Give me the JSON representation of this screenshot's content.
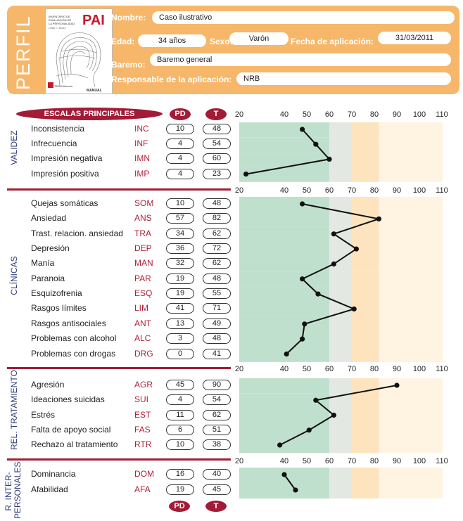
{
  "header": {
    "title": "PERFIL",
    "cover": {
      "logo": "PAI",
      "subtitle_lines": [
        "INVENTARIO DE",
        "EVALUACIÓN DE",
        "LA PERSONALIDAD"
      ],
      "author": "Leslie C. Morey",
      "publisher": "TEA Ediciones",
      "manual": "MANUAL"
    },
    "fields": {
      "nombre_label": "Nombre:",
      "nombre": "Caso ilustrativo",
      "edad_label": "Edad:",
      "edad": "34 años",
      "sexo_label": "Sexo:",
      "sexo": "Varón",
      "fecha_label": "Fecha de aplicación:",
      "fecha": "31/03/2011",
      "baremo_label": "Baremo:",
      "baremo": "Baremo general",
      "responsable_label": "Responsable de la aplicación:",
      "responsable": "NRB"
    }
  },
  "table": {
    "header_title": "ESCALAS PRINCIPALES",
    "pd_label": "PD",
    "t_label": "T",
    "sections": [
      {
        "label": "VALIDEZ"
      },
      {
        "label": "CLÍNICAS"
      },
      {
        "label": "REL. TRATAMIENTO"
      },
      {
        "label": "R. INTER-PERSONALES"
      }
    ]
  },
  "colors": {
    "header_bg": "#f6b76a",
    "accent_red": "#a31c37",
    "green_zone": "#bfe0cd",
    "light_grey_zone": "#e4e8e2",
    "peach_zone": "#fde4be",
    "pale_zone": "#fff3e2",
    "section_blue": "#2f3f7a"
  },
  "chart_data": {
    "type": "line",
    "x_axis_ticks": [
      20,
      40,
      50,
      60,
      70,
      80,
      90,
      100,
      110
    ],
    "xlim": [
      20,
      110
    ],
    "groups": [
      {
        "section": "VALIDEZ",
        "scales": [
          {
            "name": "Inconsistencia",
            "abbr": "INC",
            "pd": "10",
            "t": 48
          },
          {
            "name": "Infrecuencia",
            "abbr": "INF",
            "pd": "4",
            "t": 54
          },
          {
            "name": "Impresión negativa",
            "abbr": "IMN",
            "pd": "4",
            "t": 60
          },
          {
            "name": "Impresión positiva",
            "abbr": "IMP",
            "pd": "4",
            "t": 23
          }
        ]
      },
      {
        "section": "CLÍNICAS",
        "scales": [
          {
            "name": "Quejas somáticas",
            "abbr": "SOM",
            "pd": "10",
            "t": 48
          },
          {
            "name": "Ansiedad",
            "abbr": "ANS",
            "pd": "57",
            "t": 82
          },
          {
            "name": "Trast. relacion. ansiedad",
            "abbr": "TRA",
            "pd": "34",
            "t": 62
          },
          {
            "name": "Depresión",
            "abbr": "DEP",
            "pd": "36",
            "t": 72
          },
          {
            "name": "Manía",
            "abbr": "MAN",
            "pd": "32",
            "t": 62
          },
          {
            "name": "Paranoia",
            "abbr": "PAR",
            "pd": "19",
            "t": 48
          },
          {
            "name": "Esquizofrenia",
            "abbr": "ESQ",
            "pd": "19",
            "t": 55
          },
          {
            "name": "Rasgos límites",
            "abbr": "LIM",
            "pd": "41",
            "t": 71
          },
          {
            "name": "Rasgos antisociales",
            "abbr": "ANT",
            "pd": "13",
            "t": 49
          },
          {
            "name": "Problemas con alcohol",
            "abbr": "ALC",
            "pd": "3",
            "t": 48
          },
          {
            "name": "Problemas con drogas",
            "abbr": "DRG",
            "pd": "0",
            "t": 41
          }
        ]
      },
      {
        "section": "REL. TRATAMIENTO",
        "scales": [
          {
            "name": "Agresión",
            "abbr": "AGR",
            "pd": "45",
            "t": 90
          },
          {
            "name": "Ideaciones suicidas",
            "abbr": "SUI",
            "pd": "4",
            "t": 54
          },
          {
            "name": "Estrés",
            "abbr": "EST",
            "pd": "11",
            "t": 62
          },
          {
            "name": "Falta de apoyo social",
            "abbr": "FAS",
            "pd": "6",
            "t": 51
          },
          {
            "name": "Rechazo al tratamiento",
            "abbr": "RTR",
            "pd": "10",
            "t": 38
          }
        ]
      },
      {
        "section": "R. INTER-PERSONALES",
        "scales": [
          {
            "name": "Dominancia",
            "abbr": "DOM",
            "pd": "16",
            "t": 40
          },
          {
            "name": "Afabilidad",
            "abbr": "AFA",
            "pd": "19",
            "t": 45
          }
        ]
      }
    ]
  }
}
